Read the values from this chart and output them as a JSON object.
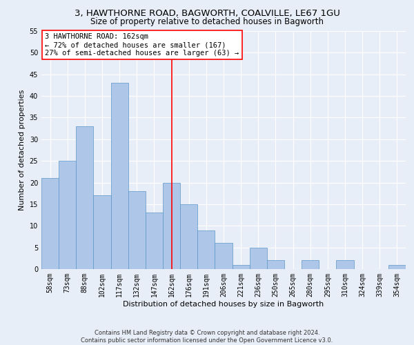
{
  "title1": "3, HAWTHORNE ROAD, BAGWORTH, COALVILLE, LE67 1GU",
  "title2": "Size of property relative to detached houses in Bagworth",
  "xlabel": "Distribution of detached houses by size in Bagworth",
  "ylabel": "Number of detached properties",
  "categories": [
    "58sqm",
    "73sqm",
    "88sqm",
    "102sqm",
    "117sqm",
    "132sqm",
    "147sqm",
    "162sqm",
    "176sqm",
    "191sqm",
    "206sqm",
    "221sqm",
    "236sqm",
    "250sqm",
    "265sqm",
    "280sqm",
    "295sqm",
    "310sqm",
    "324sqm",
    "339sqm",
    "354sqm"
  ],
  "values": [
    21,
    25,
    33,
    17,
    43,
    18,
    13,
    20,
    15,
    9,
    6,
    1,
    5,
    2,
    0,
    2,
    0,
    2,
    0,
    0,
    1
  ],
  "bar_color": "#aec6e8",
  "bar_edge_color": "#5a96c8",
  "bar_width": 1.0,
  "property_line_x": 7,
  "annotation_text": "3 HAWTHORNE ROAD: 162sqm\n← 72% of detached houses are smaller (167)\n27% of semi-detached houses are larger (63) →",
  "annotation_box_color": "white",
  "annotation_box_edge_color": "red",
  "vline_color": "red",
  "ylim": [
    0,
    55
  ],
  "yticks": [
    0,
    5,
    10,
    15,
    20,
    25,
    30,
    35,
    40,
    45,
    50,
    55
  ],
  "bg_color": "#e8eef7",
  "plot_bg_color": "#e8eef7",
  "grid_color": "white",
  "footer1": "Contains HM Land Registry data © Crown copyright and database right 2024.",
  "footer2": "Contains public sector information licensed under the Open Government Licence v3.0.",
  "title_fontsize": 9.5,
  "subtitle_fontsize": 8.5,
  "axis_label_fontsize": 8,
  "tick_fontsize": 7,
  "annotation_fontsize": 7.5,
  "footer_fontsize": 6
}
